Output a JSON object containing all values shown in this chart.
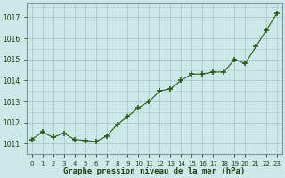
{
  "x": [
    0,
    1,
    2,
    3,
    4,
    5,
    6,
    7,
    8,
    9,
    10,
    11,
    12,
    13,
    14,
    15,
    16,
    17,
    18,
    19,
    20,
    21,
    22,
    23
  ],
  "y": [
    1011.2,
    1011.55,
    1011.3,
    1011.5,
    1011.2,
    1011.15,
    1011.1,
    1011.35,
    1011.9,
    1012.3,
    1012.7,
    1013.0,
    1013.5,
    1013.6,
    1014.0,
    1014.3,
    1014.3,
    1014.4,
    1014.4,
    1015.0,
    1014.8,
    1015.6,
    1016.4,
    1017.2
  ],
  "line_color": "#2d5a1b",
  "marker_color": "#2d5a1b",
  "bg_color": "#cce8e8",
  "grid_color": "#aacaca",
  "xlabel": "Graphe pression niveau de la mer (hPa)",
  "xlabel_color": "#1a4010",
  "tick_label_color": "#1a4010",
  "ylim": [
    1010.5,
    1017.7
  ],
  "xlim": [
    -0.5,
    23.5
  ],
  "yticks": [
    1011,
    1012,
    1013,
    1014,
    1015,
    1016,
    1017
  ],
  "xticks": [
    0,
    1,
    2,
    3,
    4,
    5,
    6,
    7,
    8,
    9,
    10,
    11,
    12,
    13,
    14,
    15,
    16,
    17,
    18,
    19,
    20,
    21,
    22,
    23
  ],
  "xtick_labels": [
    "0",
    "1",
    "2",
    "3",
    "4",
    "5",
    "6",
    "7",
    "8",
    "9",
    "10",
    "11",
    "12",
    "13",
    "14",
    "15",
    "16",
    "17",
    "18",
    "19",
    "20",
    "21",
    "22",
    "23"
  ]
}
